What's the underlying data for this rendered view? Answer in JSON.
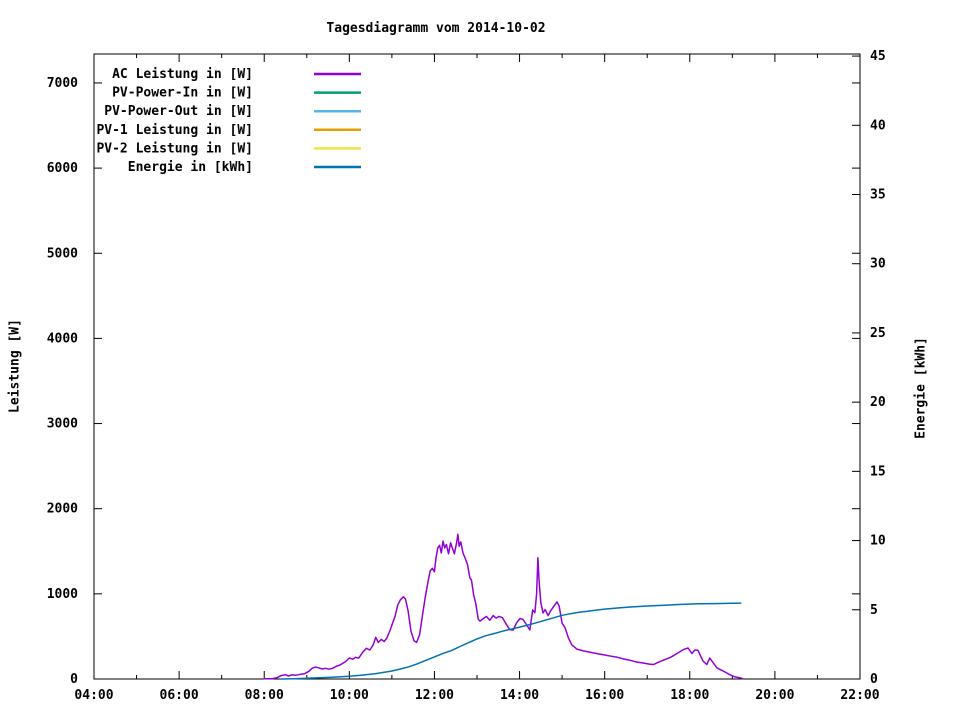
{
  "chart_data": {
    "type": "line",
    "title": "Tagesdiagramm vom 2014-10-02",
    "x_axis": {
      "range_hours": [
        4,
        22
      ],
      "major_hours": [
        4,
        6,
        8,
        10,
        12,
        14,
        16,
        18,
        20,
        22
      ],
      "tick_labels": [
        "04:00",
        "06:00",
        "08:00",
        "10:00",
        "12:00",
        "14:00",
        "16:00",
        "18:00",
        "20:00",
        "22:00"
      ],
      "minor_hours": [
        5,
        7,
        9,
        11,
        13,
        15,
        17,
        19,
        21
      ]
    },
    "y_left": {
      "label": "Leistung [W]",
      "ticks": [
        0,
        1000,
        2000,
        3000,
        4000,
        5000,
        6000,
        7000
      ],
      "range": [
        0,
        7340
      ]
    },
    "y_right": {
      "label": "Energie [kWh]",
      "ticks": [
        0,
        5,
        10,
        15,
        20,
        25,
        30,
        35,
        40,
        45
      ],
      "range": [
        0,
        45.15
      ]
    },
    "grid": false,
    "legend_position": "top-left-inside",
    "legend": [
      {
        "label": "AC Leistung in [W]",
        "color": "#9400d3"
      },
      {
        "label": "PV-Power-In in [W]",
        "color": "#009e73"
      },
      {
        "label": "PV-Power-Out in [W]",
        "color": "#56b4e9"
      },
      {
        "label": "PV-1 Leistung in [W]",
        "color": "#e69f00"
      },
      {
        "label": "PV-2 Leistung in [W]",
        "color": "#f0e442"
      },
      {
        "label": "Energie in [kWh]",
        "color": "#0072b2"
      }
    ],
    "series": [
      {
        "name": "AC Leistung in [W]",
        "axis": "left",
        "color": "#9400d3",
        "points": [
          [
            8.0,
            2
          ],
          [
            8.2,
            5
          ],
          [
            8.3,
            15
          ],
          [
            8.4,
            40
          ],
          [
            8.5,
            50
          ],
          [
            8.57,
            35
          ],
          [
            8.65,
            48
          ],
          [
            8.75,
            45
          ],
          [
            8.85,
            55
          ],
          [
            8.95,
            62
          ],
          [
            9.05,
            90
          ],
          [
            9.12,
            125
          ],
          [
            9.2,
            140
          ],
          [
            9.28,
            132
          ],
          [
            9.36,
            118
          ],
          [
            9.44,
            126
          ],
          [
            9.52,
            115
          ],
          [
            9.6,
            125
          ],
          [
            9.7,
            150
          ],
          [
            9.78,
            165
          ],
          [
            9.85,
            185
          ],
          [
            9.9,
            200
          ],
          [
            10.0,
            247
          ],
          [
            10.08,
            232
          ],
          [
            10.15,
            255
          ],
          [
            10.22,
            245
          ],
          [
            10.32,
            318
          ],
          [
            10.4,
            360
          ],
          [
            10.48,
            340
          ],
          [
            10.56,
            400
          ],
          [
            10.62,
            490
          ],
          [
            10.68,
            430
          ],
          [
            10.75,
            465
          ],
          [
            10.82,
            440
          ],
          [
            10.88,
            480
          ],
          [
            10.96,
            576
          ],
          [
            11.02,
            660
          ],
          [
            11.07,
            730
          ],
          [
            11.14,
            870
          ],
          [
            11.2,
            930
          ],
          [
            11.27,
            965
          ],
          [
            11.32,
            940
          ],
          [
            11.38,
            800
          ],
          [
            11.45,
            560
          ],
          [
            11.52,
            450
          ],
          [
            11.58,
            430
          ],
          [
            11.65,
            520
          ],
          [
            11.72,
            750
          ],
          [
            11.78,
            950
          ],
          [
            11.85,
            1150
          ],
          [
            11.9,
            1270
          ],
          [
            11.95,
            1300
          ],
          [
            12.0,
            1260
          ],
          [
            12.04,
            1430
          ],
          [
            12.08,
            1540
          ],
          [
            12.12,
            1570
          ],
          [
            12.16,
            1480
          ],
          [
            12.2,
            1620
          ],
          [
            12.24,
            1540
          ],
          [
            12.28,
            1580
          ],
          [
            12.33,
            1470
          ],
          [
            12.38,
            1600
          ],
          [
            12.42,
            1540
          ],
          [
            12.47,
            1470
          ],
          [
            12.52,
            1600
          ],
          [
            12.55,
            1700
          ],
          [
            12.58,
            1560
          ],
          [
            12.62,
            1610
          ],
          [
            12.67,
            1480
          ],
          [
            12.72,
            1420
          ],
          [
            12.78,
            1340
          ],
          [
            12.83,
            1190
          ],
          [
            12.87,
            1160
          ],
          [
            12.92,
            990
          ],
          [
            12.97,
            890
          ],
          [
            13.03,
            700
          ],
          [
            13.07,
            680
          ],
          [
            13.15,
            710
          ],
          [
            13.22,
            735
          ],
          [
            13.3,
            690
          ],
          [
            13.38,
            745
          ],
          [
            13.45,
            715
          ],
          [
            13.52,
            735
          ],
          [
            13.6,
            720
          ],
          [
            13.68,
            650
          ],
          [
            13.77,
            580
          ],
          [
            13.85,
            575
          ],
          [
            13.93,
            660
          ],
          [
            14.01,
            710
          ],
          [
            14.08,
            700
          ],
          [
            14.16,
            640
          ],
          [
            14.24,
            575
          ],
          [
            14.31,
            810
          ],
          [
            14.36,
            780
          ],
          [
            14.4,
            1000
          ],
          [
            14.43,
            1425
          ],
          [
            14.46,
            1150
          ],
          [
            14.5,
            900
          ],
          [
            14.55,
            775
          ],
          [
            14.6,
            815
          ],
          [
            14.67,
            745
          ],
          [
            14.73,
            800
          ],
          [
            14.8,
            850
          ],
          [
            14.88,
            905
          ],
          [
            14.93,
            860
          ],
          [
            15.0,
            655
          ],
          [
            15.07,
            600
          ],
          [
            15.15,
            480
          ],
          [
            15.23,
            400
          ],
          [
            15.35,
            350
          ],
          [
            15.5,
            330
          ],
          [
            15.7,
            310
          ],
          [
            15.85,
            295
          ],
          [
            16.0,
            282
          ],
          [
            16.15,
            268
          ],
          [
            16.3,
            255
          ],
          [
            16.45,
            235
          ],
          [
            16.6,
            220
          ],
          [
            16.75,
            200
          ],
          [
            16.9,
            188
          ],
          [
            17.05,
            175
          ],
          [
            17.15,
            170
          ],
          [
            17.25,
            195
          ],
          [
            17.4,
            225
          ],
          [
            17.55,
            255
          ],
          [
            17.7,
            300
          ],
          [
            17.85,
            345
          ],
          [
            17.96,
            364
          ],
          [
            18.05,
            300
          ],
          [
            18.12,
            340
          ],
          [
            18.19,
            338
          ],
          [
            18.31,
            210
          ],
          [
            18.4,
            170
          ],
          [
            18.47,
            247
          ],
          [
            18.55,
            190
          ],
          [
            18.64,
            130
          ],
          [
            18.78,
            95
          ],
          [
            18.94,
            50
          ],
          [
            19.06,
            25
          ],
          [
            19.17,
            15
          ],
          [
            19.25,
            3
          ]
        ]
      },
      {
        "name": "PV-Power-In in [W]",
        "axis": "left",
        "color": "#009e73",
        "points": []
      },
      {
        "name": "PV-Power-Out in [W]",
        "axis": "left",
        "color": "#56b4e9",
        "points": []
      },
      {
        "name": "PV-1 Leistung in [W]",
        "axis": "left",
        "color": "#e69f00",
        "points": []
      },
      {
        "name": "PV-2 Leistung in [W]",
        "axis": "left",
        "color": "#f0e442",
        "points": []
      },
      {
        "name": "Energie in [kWh]",
        "axis": "right",
        "color": "#0072b2",
        "points": [
          [
            8.4,
            0
          ],
          [
            8.7,
            0.02
          ],
          [
            9.0,
            0.05
          ],
          [
            9.3,
            0.09
          ],
          [
            9.6,
            0.13
          ],
          [
            9.9,
            0.18
          ],
          [
            10.0,
            0.2
          ],
          [
            10.3,
            0.28
          ],
          [
            10.6,
            0.38
          ],
          [
            10.9,
            0.52
          ],
          [
            11.0,
            0.58
          ],
          [
            11.2,
            0.72
          ],
          [
            11.4,
            0.88
          ],
          [
            11.6,
            1.1
          ],
          [
            11.8,
            1.35
          ],
          [
            12.0,
            1.6
          ],
          [
            12.2,
            1.85
          ],
          [
            12.4,
            2.05
          ],
          [
            12.6,
            2.35
          ],
          [
            12.8,
            2.62
          ],
          [
            13.0,
            2.9
          ],
          [
            13.2,
            3.12
          ],
          [
            13.4,
            3.28
          ],
          [
            13.6,
            3.45
          ],
          [
            13.8,
            3.6
          ],
          [
            14.0,
            3.75
          ],
          [
            14.2,
            3.9
          ],
          [
            14.4,
            4.07
          ],
          [
            14.6,
            4.25
          ],
          [
            14.8,
            4.42
          ],
          [
            15.0,
            4.6
          ],
          [
            15.2,
            4.72
          ],
          [
            15.4,
            4.82
          ],
          [
            15.6,
            4.9
          ],
          [
            15.8,
            4.98
          ],
          [
            16.0,
            5.05
          ],
          [
            16.3,
            5.13
          ],
          [
            16.6,
            5.2
          ],
          [
            17.0,
            5.27
          ],
          [
            17.4,
            5.33
          ],
          [
            17.8,
            5.39
          ],
          [
            18.2,
            5.43
          ],
          [
            18.6,
            5.45
          ],
          [
            19.0,
            5.47
          ],
          [
            19.2,
            5.48
          ]
        ]
      }
    ]
  }
}
